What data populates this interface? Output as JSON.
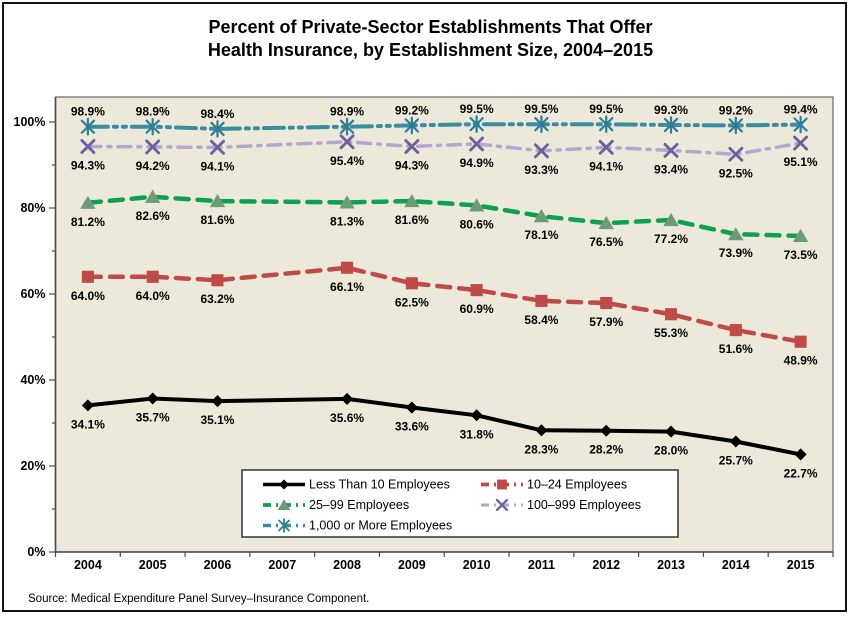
{
  "title": {
    "line1": "Percent of Private-Sector Establishments That Offer",
    "line2": "Health Insurance, by Establishment Size, 2004–2015"
  },
  "source": {
    "text": "Source: Medical Expenditure Panel Survey–Insurance Component."
  },
  "chart_data": {
    "type": "line",
    "title": "Percent of Private-Sector Establishments That Offer Health Insurance, by Establishment Size, 2004–2015",
    "xlabel": "",
    "ylabel": "",
    "x_categories": [
      "2004",
      "2005",
      "2006",
      "2007",
      "2008",
      "2009",
      "2010",
      "2011",
      "2012",
      "2013",
      "2014",
      "2015"
    ],
    "ylim": [
      0,
      100
    ],
    "y_tick_labels": [
      "0%",
      "20%",
      "40%",
      "60%",
      "80%",
      "100%"
    ],
    "y_major_ticks": [
      0,
      20,
      40,
      60,
      80,
      100
    ],
    "y_minor_ticks": [
      10,
      30,
      50,
      70,
      90
    ],
    "grid": false,
    "plot_bg_color": "#ece9da",
    "legend_position": "bottom-inside-box",
    "data_label_format": "percent-one-decimal",
    "series": [
      {
        "name": "Less Than 10 Employees",
        "color": "#000000",
        "marker": "diamond",
        "marker_color": "#000000",
        "dash": "solid",
        "label_side": "below",
        "values": [
          34.1,
          35.7,
          35.1,
          null,
          35.6,
          33.6,
          31.8,
          28.3,
          28.2,
          28.0,
          25.7,
          22.7
        ]
      },
      {
        "name": "10–24 Employees",
        "color": "#be4b48",
        "marker": "square",
        "marker_color": "#be4b48",
        "dash": "dashed",
        "label_side": "below",
        "values": [
          64.0,
          64.0,
          63.2,
          null,
          66.1,
          62.5,
          60.9,
          58.4,
          57.9,
          55.3,
          51.6,
          48.9
        ]
      },
      {
        "name": "25–99 Employees",
        "color": "#0da04f",
        "marker": "triangle",
        "marker_color": "#6d9b78",
        "dash": "dashed",
        "label_side": "below",
        "values": [
          81.2,
          82.6,
          81.6,
          null,
          81.3,
          81.6,
          80.6,
          78.1,
          76.5,
          77.2,
          73.9,
          73.5
        ]
      },
      {
        "name": "100–999 Employees",
        "color": "#b6a6cf",
        "marker": "x-cross",
        "marker_color": "#6f5f9c",
        "dash": "dashdot",
        "label_side": "below",
        "values": [
          94.3,
          94.2,
          94.1,
          null,
          95.4,
          94.3,
          94.9,
          93.3,
          94.1,
          93.4,
          92.5,
          95.1
        ]
      },
      {
        "name": "1,000 or More Employees",
        "color": "#3b8ca0",
        "marker": "asterisk",
        "marker_color": "#2d7d95",
        "dash": "longdashdotdot",
        "label_side": "above",
        "values": [
          98.9,
          98.9,
          98.4,
          null,
          98.9,
          99.2,
          99.5,
          99.5,
          99.5,
          99.3,
          99.2,
          99.4
        ]
      }
    ]
  }
}
